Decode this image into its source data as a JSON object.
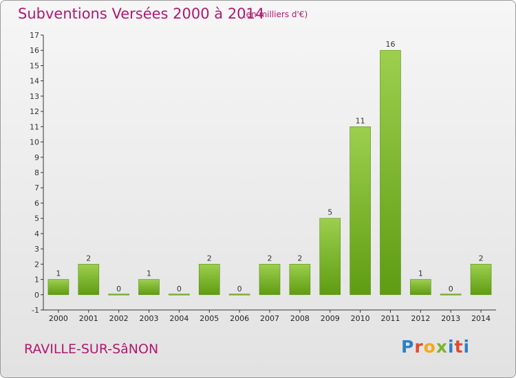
{
  "title": "Subventions Versées 2000 à 2014",
  "subtitle": "(en milliers d'€)",
  "location": "RAVILLE-SUR-SâNON",
  "logo_text": "Proxiti",
  "colors": {
    "title": "#b0186e",
    "bar_light": "#9ccf4e",
    "bar_dark": "#5f9c12",
    "axis": "#333333"
  },
  "chart_data": {
    "type": "bar",
    "title": "Subventions Versées 2000 à 2014",
    "subtitle": "(en milliers d'€)",
    "xlabel": "",
    "ylabel": "",
    "categories": [
      "2000",
      "2001",
      "2002",
      "2003",
      "2004",
      "2005",
      "2006",
      "2007",
      "2008",
      "2009",
      "2010",
      "2011",
      "2012",
      "2013",
      "2014"
    ],
    "values": [
      1,
      2,
      0,
      1,
      0,
      2,
      0,
      2,
      2,
      5,
      11,
      16,
      1,
      0,
      2
    ],
    "ylim": [
      -1,
      17
    ],
    "yticks": [
      -1,
      0,
      1,
      2,
      3,
      4,
      5,
      6,
      7,
      8,
      9,
      10,
      11,
      12,
      13,
      14,
      15,
      16,
      17
    ],
    "grid": false,
    "legend": "none"
  }
}
